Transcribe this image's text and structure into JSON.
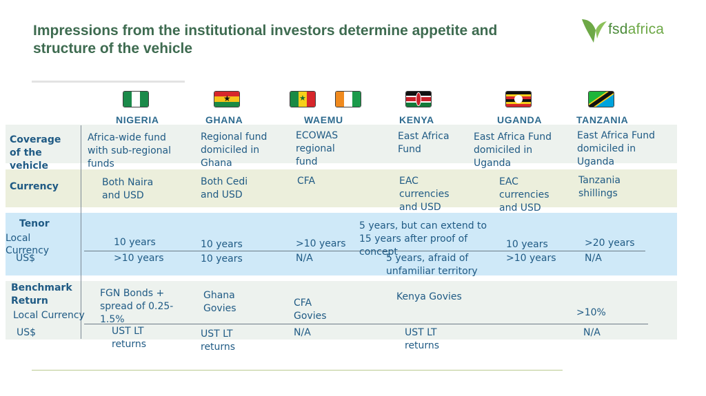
{
  "slide": {
    "title": "Impressions from the institutional investors determine appetite and structure of the vehicle",
    "logo": {
      "text_prefix": "fsd",
      "text_suffix": "africa",
      "icon": "fsd-bird-icon",
      "color": "#6da846"
    }
  },
  "countries": [
    {
      "label": "NIGERIA",
      "flag": "nigeria-flag"
    },
    {
      "label": "GHANA",
      "flag": "ghana-flag"
    },
    {
      "label": "WAEMU",
      "flag": "senegal-flag, cote-divoire-flag"
    },
    {
      "label": "KENYA",
      "flag": "kenya-flag"
    },
    {
      "label": "UGANDA",
      "flag": "uganda-flag"
    },
    {
      "label": "TANZANIA",
      "flag": "tanzania-flag"
    }
  ],
  "rows": {
    "coverage": {
      "label": "Coverage of the vehicle",
      "cells": [
        "Africa-wide fund with sub-regional funds",
        "Regional fund domiciled in Ghana",
        "ECOWAS regional fund",
        "East Africa Fund",
        "East Africa Fund domiciled in Uganda",
        "East Africa Fund domiciled in Uganda"
      ]
    },
    "currency": {
      "label": "Currency",
      "cells": [
        "Both Naira and USD",
        "Both Cedi and USD",
        "CFA",
        "EAC currencies and USD",
        "EAC currencies and USD",
        "Tanzania shillings"
      ]
    },
    "tenor": {
      "label": "Tenor",
      "local_label": "Local Currency",
      "usd_label": "US$",
      "local": [
        "10 years",
        "10 years",
        ">10 years",
        "5 years, but can extend to 15 years after proof of concept",
        "10 years",
        ">20 years"
      ],
      "usd": [
        ">10 years",
        "10 years",
        "N/A",
        "5 years, afraid of unfamiliar territory",
        ">10 years",
        "N/A"
      ]
    },
    "benchmark": {
      "label": "Benchmark Return",
      "local_label": "Local Currency",
      "usd_label": "US$",
      "local": [
        "FGN Bonds + spread of 0.25-1.5%",
        "Ghana Govies",
        "CFA Govies",
        "Kenya Govies",
        "",
        ">10%"
      ],
      "usd": [
        "UST LT returns",
        "UST LT returns",
        "N/A",
        "UST LT returns",
        "",
        "N/A"
      ]
    }
  },
  "colors": {
    "title": "#3e6b50",
    "coverage_band": "#edf2ee",
    "currency_band": "#ecefdc",
    "tenor_band": "#cfe9f8",
    "benchmark_band": "#edf2ee",
    "text": "#1f5a84"
  }
}
